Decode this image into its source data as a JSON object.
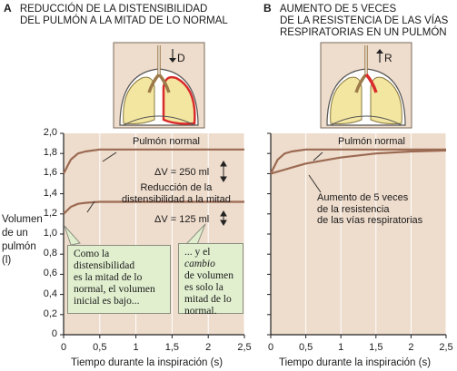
{
  "panel_a": {
    "letter": "A",
    "title_line1": "REDUCCIÓN DE LA DISTENSIBILIDAD",
    "title_line2": "DEL PULMÓN A LA MITAD DE LO NORMAL",
    "icon_label": "D",
    "normal_label": "Pulmón normal",
    "reduced_label_line1": "Reducción de la",
    "reduced_label_line2": "distensibilidad a la mitad",
    "dv_normal": "ΔV = 250 ml",
    "dv_reduced": "ΔV = 125 ml",
    "callout1": [
      "Como la",
      "distensibilidad",
      "es la mitad de lo",
      "normal, el volumen",
      "inicial es bajo..."
    ],
    "callout2_line1": "... y el ",
    "callout2_italic": "cambio",
    "callout2_rest": [
      "de volumen",
      "es solo la",
      "mitad de lo",
      "normal."
    ],
    "xlabel": "Tiempo durante la inspiración (s)"
  },
  "panel_b": {
    "letter": "B",
    "title_line1": "AUMENTO DE 5 VECES",
    "title_line2": "DE LA RESISTENCIA DE LAS VÍAS",
    "title_line3": "RESPIRATORIAS EN UN PULMÓN",
    "icon_label": "R",
    "normal_label": "Pulmón normal",
    "increased_label": [
      "Aumento de 5 veces",
      "de la resistencia",
      "de las vías respiratorias"
    ],
    "xlabel": "Tiempo durante la inspiración (s)"
  },
  "ylabel": [
    "Volumen",
    "de un",
    "pulmón",
    "(l)"
  ],
  "y_ticks": [
    "2,0",
    "1,8",
    "1,6",
    "1,4",
    "1,2",
    "1,0",
    "0,8",
    "0,6",
    "0,4",
    "0,2",
    "0"
  ],
  "x_ticks": [
    "0",
    "0,5",
    "1",
    "1,5",
    "2",
    "2,5"
  ],
  "colors": {
    "panel_bg": "#eedccc",
    "curve": "#9b6a52",
    "callout_bg": "#e1efcf",
    "lung": "#f3e6a0",
    "affected": "#d92b2b"
  },
  "chart_data": [
    {
      "type": "line",
      "x": [
        0,
        0.1,
        0.2,
        0.3,
        0.5,
        1,
        1.5,
        2,
        2.5
      ],
      "series": [
        {
          "name": "Pulmón normal",
          "values": [
            1.6,
            1.74,
            1.8,
            1.82,
            1.84,
            1.84,
            1.84,
            1.84,
            1.84
          ]
        },
        {
          "name": "Reducción de la distensibilidad a la mitad",
          "values": [
            1.2,
            1.27,
            1.3,
            1.31,
            1.32,
            1.32,
            1.32,
            1.32,
            1.32
          ]
        }
      ],
      "xlabel": "Tiempo durante la inspiración (s)",
      "ylabel": "Volumen de un pulmón (l)",
      "xlim": [
        0,
        2.5
      ],
      "ylim": [
        0,
        2.0
      ]
    },
    {
      "type": "line",
      "x": [
        0,
        0.1,
        0.2,
        0.3,
        0.5,
        1,
        1.5,
        2,
        2.5
      ],
      "series": [
        {
          "name": "Pulmón normal",
          "values": [
            1.6,
            1.74,
            1.8,
            1.82,
            1.84,
            1.84,
            1.84,
            1.84,
            1.84
          ]
        },
        {
          "name": "Aumento de 5 veces de la resistencia de las vías respiratorias",
          "values": [
            1.6,
            1.62,
            1.64,
            1.66,
            1.7,
            1.76,
            1.8,
            1.82,
            1.83
          ]
        }
      ],
      "xlabel": "Tiempo durante la inspiración (s)",
      "xlim": [
        0,
        2.5
      ],
      "ylim": [
        0,
        2.0
      ]
    }
  ]
}
